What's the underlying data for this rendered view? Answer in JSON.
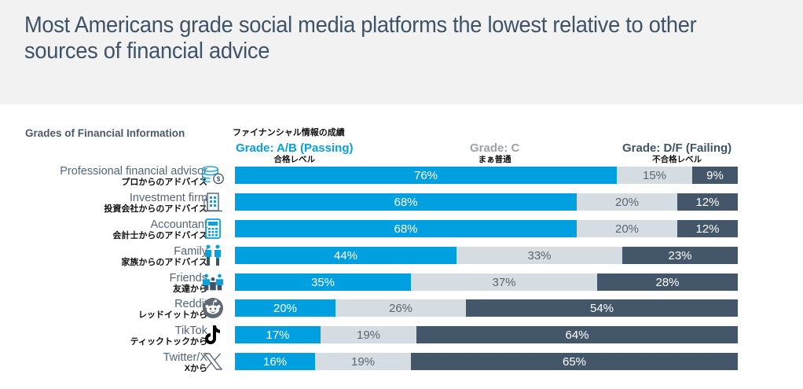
{
  "title": "Most Americans grade social media platforms the lowest relative to other sources of financial advice",
  "colors": {
    "ab": "#009fdf",
    "c": "#d6dde2",
    "df": "#44566a",
    "header_bg": "#f2f2f2"
  },
  "chart_data": {
    "type": "bar",
    "orientation": "horizontal-stacked-100",
    "title": "Grades of Financial Information",
    "title_jp": "ファイナンシャル情報の成績",
    "series": [
      {
        "name": "Grade: A/B (Passing)",
        "name_jp": "合格レベル",
        "values": [
          76,
          68,
          68,
          44,
          35,
          20,
          17,
          16
        ]
      },
      {
        "name": "Grade: C",
        "name_jp": "まぁ普通",
        "values": [
          15,
          20,
          20,
          33,
          37,
          26,
          19,
          19
        ]
      },
      {
        "name": "Grade: D/F (Failing)",
        "name_jp": "不合格レベル",
        "values": [
          9,
          12,
          12,
          23,
          28,
          54,
          64,
          65
        ]
      }
    ],
    "categories": [
      {
        "en": "Professional financial advisor",
        "jp": "プロからのアドバイス",
        "icon": "coins-icon"
      },
      {
        "en": "Investment firm",
        "jp": "投資会社からのアドバイス",
        "icon": "building-icon"
      },
      {
        "en": "Accountant",
        "jp": "会計士からのアドバイス",
        "icon": "calculator-icon"
      },
      {
        "en": "Family",
        "jp": "家族からのアドバイス",
        "icon": "family-icon"
      },
      {
        "en": "Friends",
        "jp": "友達から",
        "icon": "friends-icon"
      },
      {
        "en": "Reddit",
        "jp": "レッドイットから",
        "icon": "reddit-icon"
      },
      {
        "en": "TikTok",
        "jp": "ティックトックから",
        "icon": "tiktok-icon"
      },
      {
        "en": "Twitter/X",
        "jp": "Xから",
        "icon": "x-icon"
      }
    ],
    "value_suffix": "%",
    "xlim": [
      0,
      100
    ]
  }
}
